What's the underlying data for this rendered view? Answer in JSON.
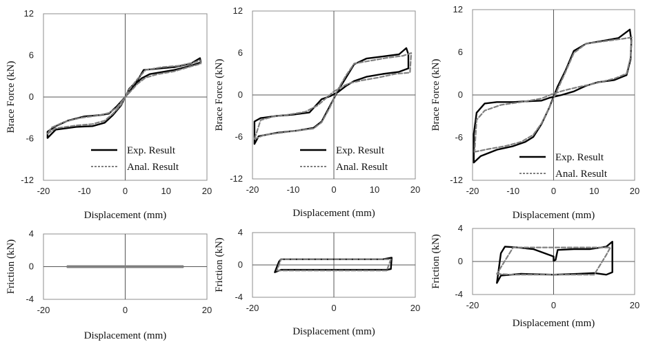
{
  "chart_data": [
    {
      "type": "line",
      "xlabel": "Displacement (mm)",
      "ylabel": "Brace Force (kN)",
      "xlim": [
        -20,
        20
      ],
      "ylim": [
        -12,
        12
      ],
      "xticks": [
        "-20",
        "-10",
        "0",
        "10",
        "20"
      ],
      "yticks": [
        "12",
        "6",
        "0",
        "-6",
        "-12"
      ],
      "legend": "bottom-right",
      "series": [
        {
          "name": "Exp. Result",
          "style": "solid",
          "color": "#000000",
          "points": [
            [
              -19,
              -5.9
            ],
            [
              -17,
              -4.7
            ],
            [
              -12,
              -4.3
            ],
            [
              -8,
              -4.2
            ],
            [
              -5,
              -3.7
            ],
            [
              -3,
              -2.6
            ],
            [
              -1,
              -1.2
            ],
            [
              0,
              0
            ],
            [
              1,
              1.2
            ],
            [
              3,
              2.4
            ],
            [
              4.5,
              3.9
            ],
            [
              8,
              4.1
            ],
            [
              12,
              4.3
            ],
            [
              16,
              4.8
            ],
            [
              18.3,
              5.6
            ],
            [
              18.5,
              5.0
            ],
            [
              16,
              4.5
            ],
            [
              12,
              3.9
            ],
            [
              8,
              3.5
            ],
            [
              6,
              3.3
            ],
            [
              4,
              2.7
            ],
            [
              2,
              1.5
            ],
            [
              0,
              0
            ],
            [
              -2,
              -1.3
            ],
            [
              -4,
              -2.4
            ],
            [
              -6,
              -2.6
            ],
            [
              -10,
              -2.8
            ],
            [
              -14,
              -3.4
            ],
            [
              -17,
              -4.2
            ],
            [
              -19,
              -5.0
            ],
            [
              -19,
              -5.9
            ]
          ]
        },
        {
          "name": "Anal. Result",
          "style": "dashed",
          "color": "#7f7f7f",
          "points": [
            [
              -19,
              -5.3
            ],
            [
              -17,
              -4.5
            ],
            [
              -12,
              -4.1
            ],
            [
              -8,
              -3.9
            ],
            [
              -5,
              -3.4
            ],
            [
              -3,
              -2.4
            ],
            [
              -1,
              -1.1
            ],
            [
              0,
              0
            ],
            [
              1,
              1.1
            ],
            [
              3,
              2.6
            ],
            [
              5,
              3.9
            ],
            [
              9,
              4.3
            ],
            [
              13,
              4.5
            ],
            [
              17,
              5.0
            ],
            [
              18.3,
              5.3
            ],
            [
              18.5,
              4.8
            ],
            [
              16,
              4.4
            ],
            [
              12,
              3.7
            ],
            [
              8,
              3.3
            ],
            [
              5,
              2.8
            ],
            [
              3,
              1.9
            ],
            [
              1,
              0.6
            ],
            [
              0,
              0
            ],
            [
              -2,
              -1.5
            ],
            [
              -4,
              -2.3
            ],
            [
              -7,
              -2.7
            ],
            [
              -11,
              -3.0
            ],
            [
              -15,
              -3.6
            ],
            [
              -18,
              -4.4
            ],
            [
              -19,
              -5.3
            ]
          ]
        }
      ]
    },
    {
      "type": "line",
      "xlabel": "Displacement (mm)",
      "ylabel": "Brace Force (kN)",
      "xlim": [
        -20,
        20
      ],
      "ylim": [
        -12,
        12
      ],
      "xticks": [
        "-20",
        "-10",
        "0",
        "10",
        "20"
      ],
      "yticks": [
        "12",
        "6",
        "0",
        "-6",
        "-12"
      ],
      "legend": "bottom-right",
      "series": [
        {
          "name": "Exp. Result",
          "style": "solid",
          "color": "#000000",
          "points": [
            [
              -19.5,
              -7.0
            ],
            [
              -18.5,
              -5.9
            ],
            [
              -14,
              -5.4
            ],
            [
              -9,
              -5.1
            ],
            [
              -5,
              -4.7
            ],
            [
              -3,
              -3.8
            ],
            [
              -1,
              -1.6
            ],
            [
              1,
              0.6
            ],
            [
              3,
              2.5
            ],
            [
              5,
              4.4
            ],
            [
              8,
              5.2
            ],
            [
              12,
              5.5
            ],
            [
              16,
              5.8
            ],
            [
              17.8,
              6.7
            ],
            [
              18.3,
              5.8
            ],
            [
              18.3,
              3.8
            ],
            [
              16,
              3.3
            ],
            [
              12,
              3.0
            ],
            [
              8,
              2.6
            ],
            [
              5,
              2.0
            ],
            [
              3,
              1.3
            ],
            [
              1,
              0.4
            ],
            [
              -1,
              -0.2
            ],
            [
              -3,
              -0.6
            ],
            [
              -6,
              -2.5
            ],
            [
              -10,
              -2.8
            ],
            [
              -14,
              -3.0
            ],
            [
              -18,
              -3.3
            ],
            [
              -19.5,
              -3.8
            ],
            [
              -19.5,
              -7.0
            ]
          ]
        },
        {
          "name": "Anal. Result",
          "style": "dashed",
          "color": "#7f7f7f",
          "points": [
            [
              -19.5,
              -6.3
            ],
            [
              -17,
              -5.7
            ],
            [
              -13,
              -5.4
            ],
            [
              -9,
              -5.1
            ],
            [
              -5,
              -4.8
            ],
            [
              -3,
              -3.9
            ],
            [
              -1,
              -1.8
            ],
            [
              1,
              0.8
            ],
            [
              3,
              2.8
            ],
            [
              5,
              4.5
            ],
            [
              9,
              4.9
            ],
            [
              13,
              5.3
            ],
            [
              17,
              5.6
            ],
            [
              19,
              6.0
            ],
            [
              18.7,
              3.2
            ],
            [
              15,
              3.0
            ],
            [
              11,
              2.5
            ],
            [
              7,
              2.1
            ],
            [
              4,
              1.7
            ],
            [
              2,
              1.2
            ],
            [
              0,
              0.5
            ],
            [
              -2,
              -0.5
            ],
            [
              -4,
              -1.5
            ],
            [
              -7,
              -2.4
            ],
            [
              -11,
              -2.8
            ],
            [
              -15,
              -3.1
            ],
            [
              -18,
              -3.6
            ],
            [
              -19.5,
              -6.3
            ]
          ]
        }
      ]
    },
    {
      "type": "line",
      "xlabel": "Displacement (mm)",
      "ylabel": "Brace Force (kN)",
      "xlim": [
        -20,
        20
      ],
      "ylim": [
        -12,
        12
      ],
      "xticks": [
        "-20",
        "-10",
        "0",
        "10",
        "20"
      ],
      "yticks": [
        "12",
        "6",
        "0",
        "-6",
        "-12"
      ],
      "legend": "bottom-right",
      "series": [
        {
          "name": "Exp. Result",
          "style": "solid",
          "color": "#000000",
          "points": [
            [
              -19.7,
              -9.5
            ],
            [
              -18,
              -8.6
            ],
            [
              -14,
              -7.7
            ],
            [
              -10,
              -7.2
            ],
            [
              -7,
              -6.6
            ],
            [
              -5,
              -5.9
            ],
            [
              -3,
              -4.1
            ],
            [
              -1,
              -1.7
            ],
            [
              1,
              1.2
            ],
            [
              3,
              3.5
            ],
            [
              5,
              6.2
            ],
            [
              8,
              7.2
            ],
            [
              12,
              7.6
            ],
            [
              16,
              8.0
            ],
            [
              18.8,
              9.2
            ],
            [
              19.2,
              7.6
            ],
            [
              19,
              5.0
            ],
            [
              18,
              2.8
            ],
            [
              15,
              2.1
            ],
            [
              11,
              1.8
            ],
            [
              8,
              1.3
            ],
            [
              5,
              0.5
            ],
            [
              2,
              0.0
            ],
            [
              -1,
              -0.4
            ],
            [
              -3,
              -0.8
            ],
            [
              -7,
              -0.9
            ],
            [
              -10,
              -1.0
            ],
            [
              -14,
              -1.0
            ],
            [
              -17,
              -1.2
            ],
            [
              -19,
              -2.5
            ],
            [
              -19.7,
              -5.5
            ],
            [
              -19.7,
              -9.5
            ]
          ]
        },
        {
          "name": "Anal. Result",
          "style": "dashed",
          "color": "#7f7f7f",
          "points": [
            [
              -19.5,
              -8.0
            ],
            [
              -16,
              -7.6
            ],
            [
              -12,
              -7.2
            ],
            [
              -8,
              -6.6
            ],
            [
              -5,
              -5.6
            ],
            [
              -3,
              -4.0
            ],
            [
              -1,
              -1.7
            ],
            [
              1,
              0.8
            ],
            [
              3,
              3.3
            ],
            [
              5,
              5.9
            ],
            [
              8,
              7.2
            ],
            [
              13,
              7.6
            ],
            [
              17,
              7.9
            ],
            [
              19.3,
              8.1
            ],
            [
              19,
              5.3
            ],
            [
              18,
              3.0
            ],
            [
              15,
              2.3
            ],
            [
              10,
              1.6
            ],
            [
              6,
              1.1
            ],
            [
              3,
              0.7
            ],
            [
              0,
              0.2
            ],
            [
              -3,
              -0.5
            ],
            [
              -8,
              -1.0
            ],
            [
              -13,
              -1.4
            ],
            [
              -17,
              -2.2
            ],
            [
              -19,
              -3.5
            ],
            [
              -19.5,
              -8.0
            ]
          ]
        }
      ]
    },
    {
      "type": "line",
      "xlabel": "Displacement (mm)",
      "ylabel": "Friction (kN)",
      "xlim": [
        -20,
        20
      ],
      "ylim": [
        -4,
        4
      ],
      "xticks": [
        "-20",
        "0",
        "20"
      ],
      "yticks": [
        "4",
        "0",
        "-4"
      ],
      "series": [
        {
          "name": "Exp. Result",
          "style": "solid",
          "color": "#000000",
          "points": [
            [
              -14,
              0
            ],
            [
              14,
              0
            ]
          ]
        },
        {
          "name": "Anal. Result",
          "style": "dashed",
          "color": "#7f7f7f",
          "points": [
            [
              -14,
              0
            ],
            [
              14,
              0
            ]
          ]
        }
      ]
    },
    {
      "type": "line",
      "xlabel": "Displacement (mm)",
      "ylabel": "Friction (kN)",
      "xlim": [
        -20,
        20
      ],
      "ylim": [
        -4,
        4
      ],
      "xticks": [
        "-20",
        "0",
        "20"
      ],
      "yticks": [
        "4",
        "0",
        "-4"
      ],
      "series": [
        {
          "name": "Exp. Result",
          "style": "solid",
          "color": "#000000",
          "points": [
            [
              -14.5,
              -0.9
            ],
            [
              -13,
              -0.6
            ],
            [
              0,
              -0.6
            ],
            [
              13,
              -0.6
            ],
            [
              14,
              -0.5
            ],
            [
              14.2,
              0.9
            ],
            [
              12,
              0.7
            ],
            [
              0,
              0.7
            ],
            [
              -13,
              0.7
            ],
            [
              -13.5,
              0.4
            ],
            [
              -14.5,
              -0.9
            ]
          ]
        },
        {
          "name": "Anal. Result",
          "style": "dashed",
          "color": "#7f7f7f",
          "points": [
            [
              -14,
              -0.7
            ],
            [
              0,
              -0.7
            ],
            [
              13,
              -0.7
            ],
            [
              14,
              0.7
            ],
            [
              0,
              0.7
            ],
            [
              -13,
              0.7
            ],
            [
              -14,
              -0.7
            ]
          ]
        }
      ]
    },
    {
      "type": "line",
      "xlabel": "Displacement (mm)",
      "ylabel": "Friction (kN)",
      "xlim": [
        -20,
        20
      ],
      "ylim": [
        -4,
        4
      ],
      "xticks": [
        "-20",
        "0",
        "20"
      ],
      "yticks": [
        "4",
        "0",
        "-4"
      ],
      "series": [
        {
          "name": "Exp. Result",
          "style": "solid",
          "color": "#000000",
          "points": [
            [
              -14,
              -2.6
            ],
            [
              -13,
              -1.7
            ],
            [
              -8,
              -1.5
            ],
            [
              0,
              -1.6
            ],
            [
              6,
              -1.5
            ],
            [
              10,
              -1.4
            ],
            [
              13,
              -1.6
            ],
            [
              14.5,
              -1.3
            ],
            [
              14.5,
              2.4
            ],
            [
              13,
              1.8
            ],
            [
              9,
              1.5
            ],
            [
              5,
              1.5
            ],
            [
              1,
              1.4
            ],
            [
              0.5,
              0.2
            ],
            [
              0,
              0.1
            ],
            [
              0,
              0.6
            ],
            [
              -5,
              1.5
            ],
            [
              -9,
              1.7
            ],
            [
              -12,
              1.8
            ],
            [
              -13,
              1.0
            ],
            [
              -14,
              -2.6
            ]
          ]
        },
        {
          "name": "Anal. Result",
          "style": "dashed",
          "color": "#7f7f7f",
          "points": [
            [
              -14,
              -1.5
            ],
            [
              -10,
              -1.6
            ],
            [
              0,
              -1.6
            ],
            [
              10,
              -1.6
            ],
            [
              13,
              0.8
            ],
            [
              14,
              1.7
            ],
            [
              10,
              1.7
            ],
            [
              0,
              1.7
            ],
            [
              -10,
              1.7
            ],
            [
              -14,
              -1.5
            ]
          ]
        }
      ]
    }
  ]
}
